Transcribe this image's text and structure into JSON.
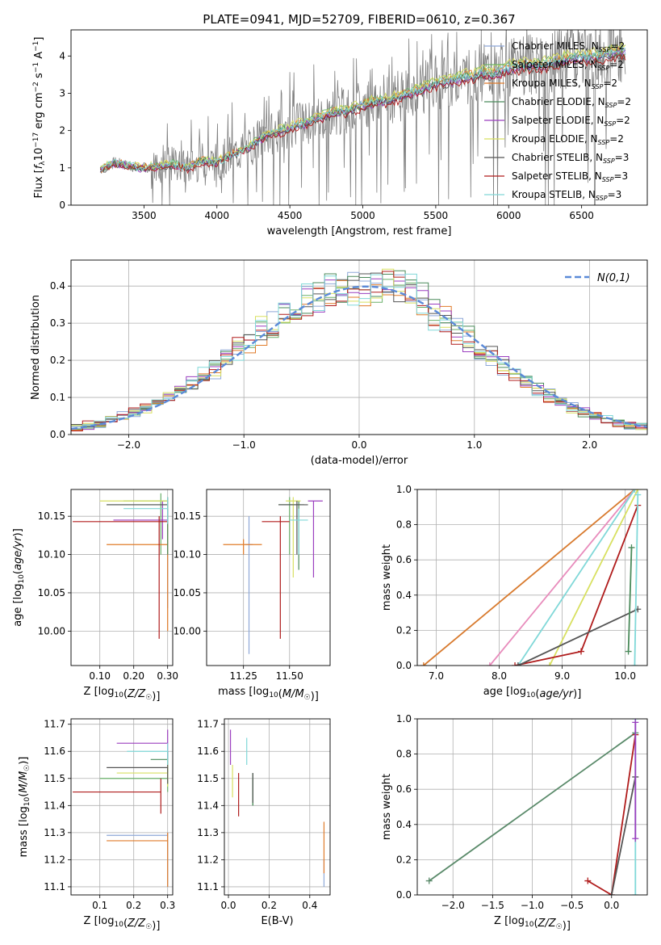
{
  "title": "PLATE=0941, MJD=52709, FIBERID=0610, z=0.367",
  "models": [
    {
      "name": "Chabrier MILES",
      "nssp": "2",
      "color": "#8ea8d8"
    },
    {
      "name": "Salpeter MILES",
      "nssp": "2",
      "color": "#6ab06a"
    },
    {
      "name": "Kroupa MILES",
      "nssp": "2",
      "color": "#e07b2a"
    },
    {
      "name": "Chabrier ELODIE",
      "nssp": "2",
      "color": "#4a8a5a"
    },
    {
      "name": "Salpeter ELODIE",
      "nssp": "2",
      "color": "#9b3fbf"
    },
    {
      "name": "Kroupa ELODIE",
      "nssp": "2",
      "color": "#d8e060"
    },
    {
      "name": "Chabrier STELIB",
      "nssp": "3",
      "color": "#555555"
    },
    {
      "name": "Salpeter STELIB",
      "nssp": "3",
      "color": "#b01c1c"
    },
    {
      "name": "Kroupa STELIB",
      "nssp": "3",
      "color": "#80d8d8"
    }
  ],
  "chart_data": [
    {
      "id": "spectrum",
      "type": "line",
      "xlabel": "wavelength [Angstrom, rest frame]",
      "ylabel": "Flux [f_λ 10^-17 erg cm^-2 s^-1 A^-1]",
      "xlim": [
        3000,
        6950
      ],
      "ylim": [
        0,
        4.7
      ],
      "xticks": [
        3500,
        4000,
        4500,
        5000,
        5500,
        6000,
        6500
      ],
      "yticks": [
        0,
        1,
        2,
        3,
        4
      ],
      "grid": false,
      "legend": "top-right",
      "data_color": "#808080",
      "continuum": {
        "x": [
          3200,
          3300,
          3400,
          3500,
          3600,
          3700,
          3800,
          3900,
          4000,
          4100,
          4200,
          4300,
          4400,
          4500,
          4600,
          4700,
          4800,
          4900,
          5000,
          5100,
          5200,
          5300,
          5400,
          5500,
          5600,
          5700,
          5800,
          5900,
          6000,
          6100,
          6200,
          6300,
          6400,
          6500,
          6600,
          6700,
          6800
        ],
        "y": [
          0.95,
          1.15,
          1.05,
          1.0,
          1.05,
          1.1,
          1.0,
          1.2,
          1.15,
          1.35,
          1.5,
          1.8,
          1.95,
          2.1,
          2.2,
          2.35,
          2.5,
          2.55,
          2.7,
          2.8,
          2.85,
          3.0,
          3.1,
          3.3,
          3.35,
          3.45,
          3.55,
          3.55,
          3.7,
          3.75,
          3.75,
          3.85,
          3.95,
          4.0,
          4.0,
          4.1,
          4.15
        ]
      },
      "series": [
        {
          "name": "Chabrier MILES, N_SSP=2",
          "scale": 1.0
        },
        {
          "name": "Salpeter MILES, N_SSP=2",
          "scale": 1.02
        },
        {
          "name": "Kroupa MILES, N_SSP=2",
          "scale": 1.01
        },
        {
          "name": "Chabrier ELODIE, N_SSP=2",
          "scale": 0.99
        },
        {
          "name": "Salpeter ELODIE, N_SSP=2",
          "scale": 0.98
        },
        {
          "name": "Kroupa ELODIE, N_SSP=2",
          "scale": 1.03
        },
        {
          "name": "Chabrier STELIB, N_SSP=3",
          "scale": 0.97
        },
        {
          "name": "Salpeter STELIB, N_SSP=3",
          "scale": 0.96
        },
        {
          "name": "Kroupa STELIB, N_SSP=3",
          "scale": 1.0
        }
      ]
    },
    {
      "id": "residuals",
      "type": "line",
      "xlabel": "(data-model)/error",
      "ylabel": "Normed distribution",
      "xlim": [
        -2.5,
        2.5
      ],
      "ylim": [
        0,
        0.47
      ],
      "xticks": [
        -2,
        -1,
        0,
        1,
        2
      ],
      "yticks": [
        0.0,
        0.1,
        0.2,
        0.3,
        0.4
      ],
      "grid": true,
      "legend": "top-right",
      "gaussian": {
        "name": "N(0,1)",
        "mu": 0.06,
        "sigma": 1.0,
        "color": "#5b8ad8"
      },
      "histogram_bin_width": 0.1
    },
    {
      "id": "age-vs-Z",
      "type": "scatter",
      "xlabel": "Z [log10(Z/Z☉)]",
      "ylabel": "age [log10(age/yr)]",
      "xlim": [
        0.015,
        0.315
      ],
      "ylim": [
        9.955,
        10.185
      ],
      "xticks": [
        0.1,
        0.2,
        0.3
      ],
      "yticks": [
        10.0,
        10.05,
        10.1,
        10.15
      ],
      "grid": true,
      "points": [
        {
          "model": 0,
          "x": 0.3,
          "y": 10.06,
          "xerr": [
            0.0,
            0.0
          ],
          "yerr": [
            10.03,
            10.15
          ]
        },
        {
          "model": 1,
          "x": 0.28,
          "y": 10.17,
          "xerr": [
            0.17,
            0.3
          ],
          "yerr": [
            10.1,
            10.18
          ]
        },
        {
          "model": 2,
          "x": 0.3,
          "y": 10.113,
          "xerr": [
            0.12,
            0.3
          ],
          "yerr": [
            10.0,
            10.16
          ]
        },
        {
          "model": 3,
          "x": 0.3,
          "y": 10.165,
          "xerr": [
            0.12,
            0.3
          ],
          "yerr": [
            10.1,
            10.17
          ]
        },
        {
          "model": 4,
          "x": 0.285,
          "y": 10.145,
          "xerr": [
            0.14,
            0.3
          ],
          "yerr": [
            10.12,
            10.17
          ]
        },
        {
          "model": 5,
          "x": 0.3,
          "y": 10.17,
          "xerr": [
            0.1,
            0.3
          ],
          "yerr": [
            10.16,
            10.175
          ]
        },
        {
          "model": 6,
          "x": 0.3,
          "y": 10.165,
          "xerr": [
            0.12,
            0.3
          ],
          "yerr": [
            10.14,
            10.175
          ]
        },
        {
          "model": 7,
          "x": 0.275,
          "y": 10.143,
          "xerr": [
            0.02,
            0.3
          ],
          "yerr": [
            9.99,
            10.15
          ]
        },
        {
          "model": 8,
          "x": 0.3,
          "y": 10.16,
          "xerr": [
            0.17,
            0.3
          ],
          "yerr": [
            10.14,
            10.175
          ]
        }
      ]
    },
    {
      "id": "age-vs-mass",
      "type": "scatter",
      "xlabel": "mass [log10(M/M☉)]",
      "ylabel": "",
      "xlim": [
        11.05,
        11.72
      ],
      "ylim": [
        9.955,
        10.185
      ],
      "xticks": [
        11.25,
        11.5
      ],
      "yticks": [
        10.0,
        10.05,
        10.1,
        10.15
      ],
      "grid": true,
      "points": [
        {
          "model": 0,
          "x": 11.28,
          "y": 10.113,
          "xerr": [
            11.26,
            11.3
          ],
          "yerr": [
            9.97,
            10.15
          ]
        },
        {
          "model": 1,
          "x": 11.5,
          "y": 10.165,
          "xerr": [
            11.44,
            11.56
          ],
          "yerr": [
            10.1,
            10.175
          ]
        },
        {
          "model": 2,
          "x": 11.25,
          "y": 10.113,
          "xerr": [
            11.14,
            11.35
          ],
          "yerr": [
            10.1,
            10.12
          ]
        },
        {
          "model": 3,
          "x": 11.55,
          "y": 10.165,
          "xerr": [
            11.44,
            11.58
          ],
          "yerr": [
            10.08,
            10.17
          ]
        },
        {
          "model": 4,
          "x": 11.63,
          "y": 10.17,
          "xerr": [
            11.6,
            11.68
          ],
          "yerr": [
            10.07,
            10.17
          ]
        },
        {
          "model": 5,
          "x": 11.52,
          "y": 10.17,
          "xerr": [
            11.48,
            11.56
          ],
          "yerr": [
            10.07,
            10.175
          ]
        },
        {
          "model": 6,
          "x": 11.54,
          "y": 10.165,
          "xerr": [
            11.44,
            11.6
          ],
          "yerr": [
            10.1,
            10.17
          ]
        },
        {
          "model": 7,
          "x": 11.45,
          "y": 10.143,
          "xerr": [
            11.35,
            11.5
          ],
          "yerr": [
            9.99,
            10.15
          ]
        },
        {
          "model": 8,
          "x": 11.55,
          "y": 10.145,
          "xerr": [
            11.5,
            11.6
          ],
          "yerr": [
            10.1,
            10.16
          ]
        }
      ]
    },
    {
      "id": "massweight-vs-age",
      "type": "line",
      "xlabel": "age [log10(age/yr)]",
      "ylabel": "mass weight",
      "xlim": [
        6.7,
        10.35
      ],
      "ylim": [
        0,
        1
      ],
      "xticks": [
        7,
        8,
        9,
        10
      ],
      "yticks": [
        0.0,
        0.2,
        0.4,
        0.6,
        0.8,
        1.0
      ],
      "grid": true,
      "lines": [
        {
          "model": 2,
          "x": [
            6.8,
            10.15
          ],
          "y": [
            0.0,
            1.0
          ],
          "color": "#d87a2e"
        },
        {
          "model": -1,
          "x": [
            7.85,
            10.15
          ],
          "y": [
            0.0,
            1.0
          ],
          "color": "#e88cbc"
        },
        {
          "model": 8,
          "x": [
            8.3,
            10.15
          ],
          "y": [
            0.0,
            1.0
          ],
          "color": "#80d8d8"
        },
        {
          "model": 5,
          "x": [
            8.8,
            10.2
          ],
          "y": [
            0.0,
            1.0
          ],
          "color": "#d8e060"
        },
        {
          "model": 7,
          "x": [
            8.25,
            9.3,
            10.2
          ],
          "y": [
            0.0,
            0.08,
            0.91
          ],
          "color": "#b01c1c"
        },
        {
          "model": 6,
          "x": [
            8.3,
            10.2
          ],
          "y": [
            0.0,
            0.32
          ],
          "color": "#555555"
        },
        {
          "model": 3,
          "x": [
            10.05,
            10.1
          ],
          "y": [
            0.08,
            0.67
          ],
          "color": "#4a8a5a"
        },
        {
          "model": 0,
          "x": [
            10.15,
            10.2
          ],
          "y": [
            0.0,
            0.97
          ],
          "color": "#80d8d8"
        }
      ]
    },
    {
      "id": "mass-vs-Z",
      "type": "scatter",
      "xlabel": "Z [log10(Z/Z☉)]",
      "ylabel": "mass [log10(M/M☉)]",
      "xlim": [
        0.015,
        0.315
      ],
      "ylim": [
        11.07,
        11.72
      ],
      "xticks": [
        0.1,
        0.2,
        0.3
      ],
      "yticks": [
        11.1,
        11.2,
        11.3,
        11.4,
        11.5,
        11.6,
        11.7
      ],
      "grid": true,
      "points": [
        {
          "model": 0,
          "x": 0.3,
          "y": 11.29,
          "xerr": [
            0.12,
            0.3
          ],
          "yerr": [
            11.1,
            11.3
          ]
        },
        {
          "model": 1,
          "x": 0.3,
          "y": 11.5,
          "xerr": [
            0.1,
            0.3
          ],
          "yerr": [
            11.45,
            11.55
          ]
        },
        {
          "model": 2,
          "x": 0.3,
          "y": 11.27,
          "xerr": [
            0.12,
            0.3
          ],
          "yerr": [
            11.1,
            11.3
          ]
        },
        {
          "model": 3,
          "x": 0.3,
          "y": 11.57,
          "xerr": [
            0.25,
            0.3
          ],
          "yerr": [
            11.52,
            11.6
          ]
        },
        {
          "model": 4,
          "x": 0.3,
          "y": 11.63,
          "xerr": [
            0.15,
            0.3
          ],
          "yerr": [
            11.56,
            11.68
          ]
        },
        {
          "model": 5,
          "x": 0.3,
          "y": 11.52,
          "xerr": [
            0.15,
            0.3
          ],
          "yerr": [
            11.47,
            11.57
          ]
        },
        {
          "model": 6,
          "x": 0.3,
          "y": 11.54,
          "xerr": [
            0.12,
            0.3
          ],
          "yerr": [
            11.48,
            11.6
          ]
        },
        {
          "model": 7,
          "x": 0.28,
          "y": 11.45,
          "xerr": [
            0.02,
            0.28
          ],
          "yerr": [
            11.37,
            11.5
          ]
        },
        {
          "model": 8,
          "x": 0.3,
          "y": 11.6,
          "xerr": [
            0.18,
            0.3
          ],
          "yerr": [
            11.55,
            11.63
          ]
        }
      ]
    },
    {
      "id": "mass-vs-EBV",
      "type": "scatter",
      "xlabel": "E(B-V)",
      "ylabel": "",
      "xlim": [
        -0.02,
        0.5
      ],
      "ylim": [
        11.07,
        11.72
      ],
      "xticks": [
        0.0,
        0.2,
        0.4
      ],
      "yticks": [
        11.1,
        11.2,
        11.3,
        11.4,
        11.5,
        11.6,
        11.7
      ],
      "grid": true,
      "points": [
        {
          "model": 0,
          "x": 0.47,
          "y": 11.14,
          "xerr": [
            0.47,
            0.47
          ],
          "yerr": [
            11.1,
            11.2
          ]
        },
        {
          "model": 1,
          "x": 0.12,
          "y": 11.45,
          "xerr": [
            0.12,
            0.12
          ],
          "yerr": [
            11.4,
            11.5
          ]
        },
        {
          "model": 2,
          "x": 0.47,
          "y": 11.25,
          "xerr": [
            0.47,
            0.47
          ],
          "yerr": [
            11.15,
            11.34
          ]
        },
        {
          "model": 3,
          "x": 0.12,
          "y": 11.47,
          "xerr": [
            0.12,
            0.12
          ],
          "yerr": [
            11.4,
            11.52
          ]
        },
        {
          "model": 4,
          "x": 0.01,
          "y": 11.63,
          "xerr": [
            0.01,
            0.01
          ],
          "yerr": [
            11.55,
            11.68
          ]
        },
        {
          "model": 5,
          "x": 0.02,
          "y": 11.5,
          "xerr": [
            0.02,
            0.02
          ],
          "yerr": [
            11.43,
            11.55
          ]
        },
        {
          "model": 6,
          "x": 0.12,
          "y": 11.45,
          "xerr": [
            0.12,
            0.12
          ],
          "yerr": [
            11.41,
            11.52
          ]
        },
        {
          "model": 7,
          "x": 0.05,
          "y": 11.45,
          "xerr": [
            0.05,
            0.05
          ],
          "yerr": [
            11.36,
            11.52
          ]
        },
        {
          "model": 8,
          "x": 0.09,
          "y": 11.6,
          "xerr": [
            0.09,
            0.09
          ],
          "yerr": [
            11.55,
            11.65
          ]
        }
      ]
    },
    {
      "id": "massweight-vs-Z",
      "type": "line",
      "xlabel": "Z [log10(Z/Z☉)]",
      "ylabel": "mass weight",
      "xlim": [
        -2.45,
        0.45
      ],
      "ylim": [
        0,
        1
      ],
      "xticks": [
        -2.0,
        -1.5,
        -1.0,
        -0.5,
        0.0
      ],
      "yticks": [
        0.0,
        0.2,
        0.4,
        0.6,
        0.8,
        1.0
      ],
      "grid": true,
      "lines": [
        {
          "model": 1,
          "x": [
            -2.3,
            0.3
          ],
          "y": [
            0.08,
            0.92
          ],
          "color": "#5a8a6a"
        },
        {
          "model": 7,
          "x": [
            -0.3,
            0.0,
            0.3
          ],
          "y": [
            0.08,
            0.0,
            0.91
          ],
          "color": "#b01c1c"
        },
        {
          "model": 6,
          "x": [
            0.0,
            0.3
          ],
          "y": [
            0.0,
            0.67
          ],
          "color": "#555555"
        },
        {
          "model": 8,
          "x": [
            0.3,
            0.3
          ],
          "y": [
            0.0,
            1.0
          ],
          "color": "#80d8d8"
        },
        {
          "model": 4,
          "x": [
            0.3,
            0.3
          ],
          "y": [
            0.32,
            0.98
          ],
          "color": "#9b3fbf"
        }
      ]
    }
  ]
}
